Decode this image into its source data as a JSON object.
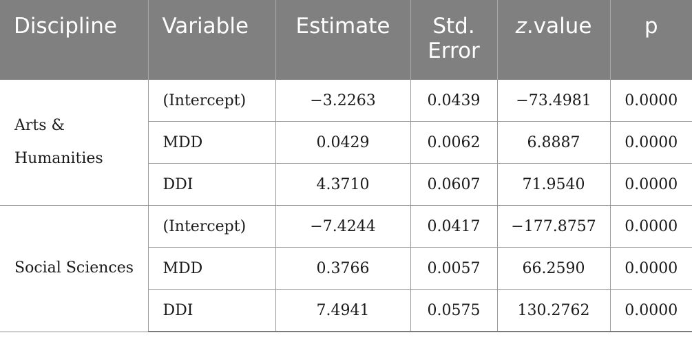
{
  "table": {
    "headers": {
      "discipline": "Discipline",
      "variable": "Variable",
      "estimate": "Estimate",
      "std_error_line1": "Std.",
      "std_error_line2": "Error",
      "z_value_italic": "z",
      "z_value_rest": ".value",
      "p": "p"
    },
    "groups": [
      {
        "discipline_line1": "Arts &",
        "discipline_line2": "Humanities",
        "rows": [
          {
            "variable": "(Intercept)",
            "estimate": "−3.2263",
            "std_error": "0.0439",
            "z_value": "−73.4981",
            "p": "0.0000"
          },
          {
            "variable": "MDD",
            "estimate": "0.0429",
            "std_error": "0.0062",
            "z_value": "6.8887",
            "p": "0.0000"
          },
          {
            "variable": "DDI",
            "estimate": "4.3710",
            "std_error": "0.0607",
            "z_value": "71.9540",
            "p": "0.0000"
          }
        ]
      },
      {
        "discipline_line1": "Social Sciences",
        "discipline_line2": "",
        "rows": [
          {
            "variable": "(Intercept)",
            "estimate": "−7.4244",
            "std_error": "0.0417",
            "z_value": "−177.8757",
            "p": "0.0000"
          },
          {
            "variable": "MDD",
            "estimate": "0.3766",
            "std_error": "0.0057",
            "z_value": "66.2590",
            "p": "0.0000"
          },
          {
            "variable": "DDI",
            "estimate": "7.4941",
            "std_error": "0.0575",
            "z_value": "130.2762",
            "p": "0.0000"
          }
        ]
      }
    ]
  }
}
